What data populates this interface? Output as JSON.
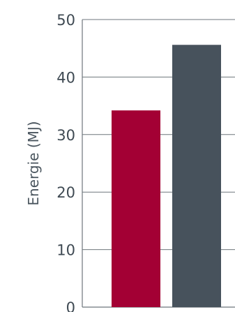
{
  "chart_data": {
    "type": "bar",
    "ylabel": "Energie (MJ)",
    "ylim": [
      0,
      50
    ],
    "yticks": [
      0,
      10,
      20,
      30,
      40,
      50
    ],
    "ytick_labels": [
      "0",
      "10",
      "20",
      "30",
      "40",
      "50"
    ],
    "grid": true,
    "values": [
      34.2,
      45.6
    ],
    "colors": [
      "#a30034",
      "#47525c"
    ]
  }
}
